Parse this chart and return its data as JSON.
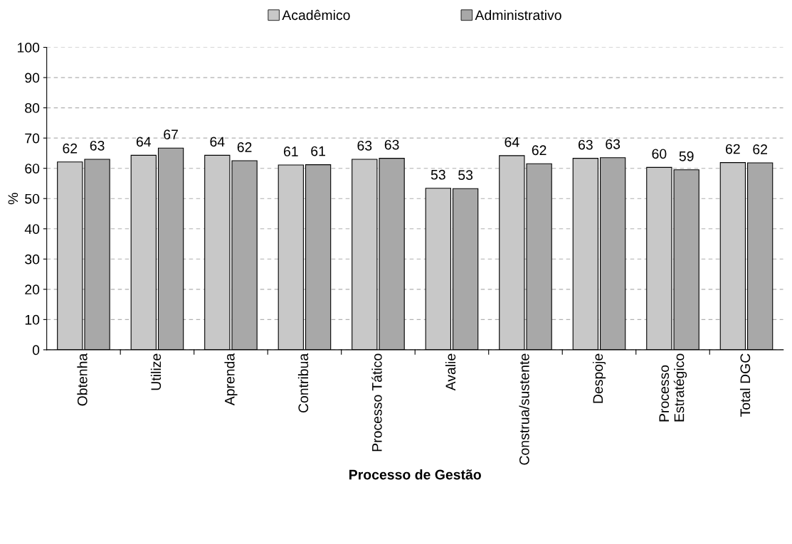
{
  "chart_data": {
    "type": "bar",
    "xlabel": "Processo de Gestão",
    "ylabel": "%",
    "categories": [
      "Obtenha",
      "Utilize",
      "Aprenda",
      "Contribua",
      "Processo Tático",
      "Avalie",
      "Construa/sustente",
      "Despoje",
      "Processo\nEstratégico",
      "Total DGC"
    ],
    "series": [
      {
        "name": "Acadêmico",
        "color": "#c8c8c8",
        "values": [
          62.1,
          64.3,
          64.3,
          61.1,
          63.0,
          53.4,
          64.2,
          63.3,
          60.3,
          61.9
        ],
        "value_labels": [
          "62",
          "64",
          "64",
          "61",
          "63",
          "53",
          "64",
          "63",
          "60",
          "62"
        ]
      },
      {
        "name": "Administrativo",
        "color": "#a8a8a8",
        "values": [
          63.0,
          66.7,
          62.5,
          61.2,
          63.3,
          53.3,
          61.5,
          63.5,
          59.5,
          61.8
        ],
        "value_labels": [
          "63",
          "67",
          "62",
          "61",
          "63",
          "53",
          "62",
          "63",
          "59",
          "62"
        ]
      }
    ],
    "ylim": [
      0,
      100
    ],
    "yticks": [
      0,
      10,
      20,
      30,
      40,
      50,
      60,
      70,
      80,
      90,
      100
    ],
    "grid": "y",
    "legend": "top"
  }
}
